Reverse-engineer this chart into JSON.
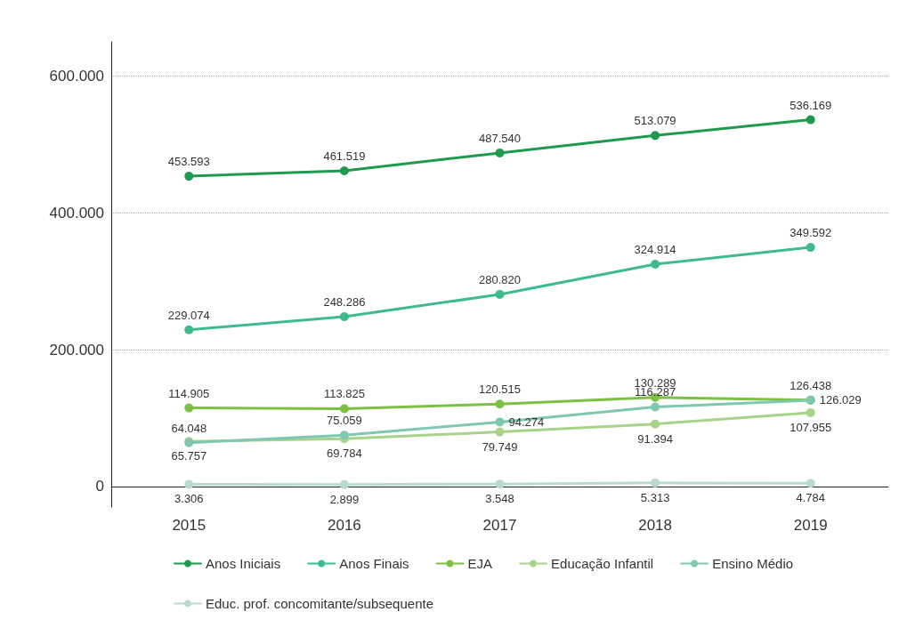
{
  "chart_data": {
    "type": "line",
    "categories": [
      "2015",
      "2016",
      "2017",
      "2018",
      "2019"
    ],
    "series": [
      {
        "name": "Anos Iniciais",
        "color": "#1e9a4e",
        "values": [
          453593,
          461519,
          487540,
          513079,
          536169
        ],
        "value_labels": [
          "453.593",
          "461.519",
          "487.540",
          "513.079",
          "536.169"
        ]
      },
      {
        "name": "Anos Finais",
        "color": "#3dbb8c",
        "values": [
          229074,
          248286,
          280820,
          324914,
          349592
        ],
        "value_labels": [
          "229.074",
          "248.286",
          "280.820",
          "324.914",
          "349.592"
        ]
      },
      {
        "name": "EJA",
        "color": "#7cc142",
        "values": [
          114905,
          113825,
          120515,
          130289,
          126438
        ],
        "value_labels": [
          "114.905",
          "113.825",
          "120.515",
          "130.289",
          "126.438"
        ]
      },
      {
        "name": "Educação Infantil",
        "color": "#a9d28a",
        "values": [
          65757,
          69784,
          79749,
          91394,
          107955
        ],
        "value_labels": [
          "65.757",
          "69.784",
          "79.749",
          "91.394",
          "107.955"
        ]
      },
      {
        "name": "Ensino Médio",
        "color": "#7fc8b0",
        "values": [
          64048,
          75059,
          94274,
          116287,
          126029
        ],
        "value_labels": [
          "64.048",
          "75.059",
          "94.274",
          "116.287",
          "126.029"
        ]
      },
      {
        "name": "Educ. prof. concomitante/subsequente",
        "color": "#b8dccb",
        "values": [
          3306,
          2899,
          3548,
          5313,
          4784
        ],
        "value_labels": [
          "3.306",
          "2.899",
          "3.548",
          "5.313",
          "4.784"
        ]
      }
    ],
    "ylim": [
      -30000,
      650000
    ],
    "yticks": [
      0,
      {
        "value": 200000,
        "label": "200.000"
      },
      {
        "value": 400000,
        "label": "400.000"
      },
      {
        "value": 600000,
        "label": "600.000"
      }
    ],
    "grid": "y",
    "legend": "bottom",
    "marker": "circle",
    "line_style": "solid"
  }
}
